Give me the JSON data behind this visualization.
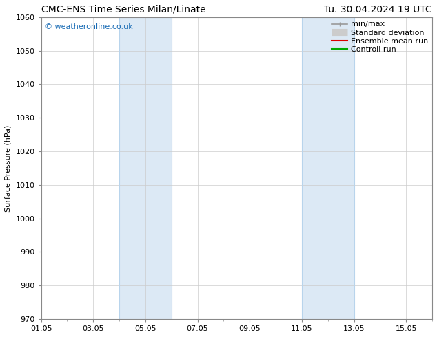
{
  "title_left": "CMC-ENS Time Series Milan/Linate",
  "title_right": "Tu. 30.04.2024 19 UTC",
  "ylabel": "Surface Pressure (hPa)",
  "xlabel": "",
  "ylim": [
    970,
    1060
  ],
  "yticks": [
    970,
    980,
    990,
    1000,
    1010,
    1020,
    1030,
    1040,
    1050,
    1060
  ],
  "xlim": [
    0,
    15
  ],
  "xtick_labels": [
    "01.05",
    "03.05",
    "05.05",
    "07.05",
    "09.05",
    "11.05",
    "13.05",
    "15.05"
  ],
  "xtick_positions": [
    0,
    2,
    4,
    6,
    8,
    10,
    12,
    14
  ],
  "shaded_bands": [
    {
      "x_start": 3,
      "x_end": 5,
      "color": "#dce9f5",
      "edge_color": "#b8d4ec"
    },
    {
      "x_start": 10,
      "x_end": 12,
      "color": "#dce9f5",
      "edge_color": "#b8d4ec"
    }
  ],
  "watermark": "© weatheronline.co.uk",
  "watermark_color": "#1a6cb5",
  "background_color": "#ffffff",
  "legend_entries": [
    {
      "label": "min/max",
      "color": "#999999",
      "lw": 1.2,
      "type": "minmax"
    },
    {
      "label": "Standard deviation",
      "color": "#cccccc",
      "lw": 8,
      "type": "band"
    },
    {
      "label": "Ensemble mean run",
      "color": "#dd0000",
      "lw": 1.5,
      "type": "line"
    },
    {
      "label": "Controll run",
      "color": "#00aa00",
      "lw": 1.5,
      "type": "line"
    }
  ],
  "grid_color": "#cccccc",
  "title_fontsize": 10,
  "tick_fontsize": 8,
  "ylabel_fontsize": 8,
  "legend_fontsize": 8
}
